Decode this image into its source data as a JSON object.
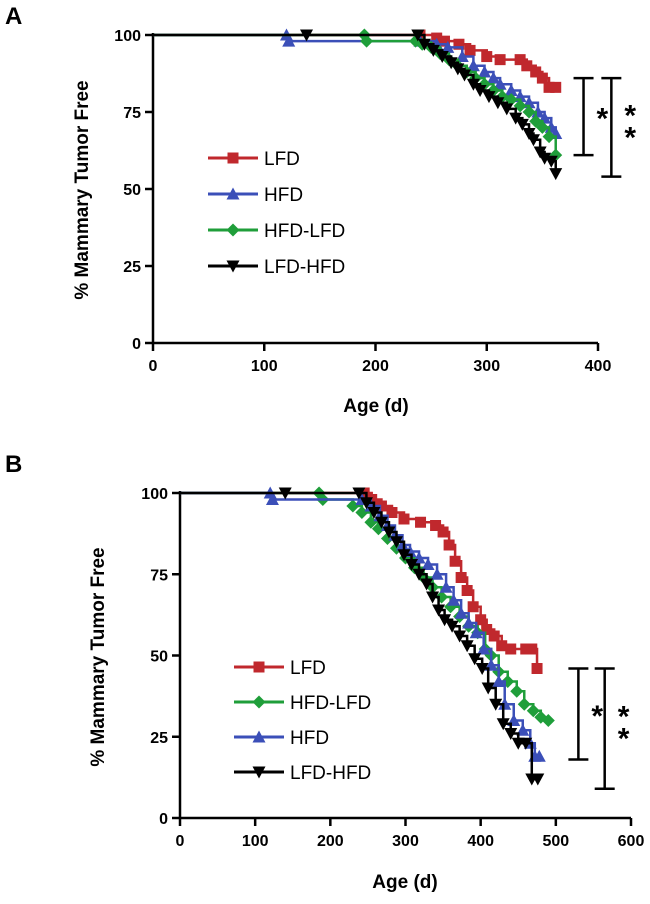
{
  "colors": {
    "LFD": "#c0282d",
    "HFD": "#3b4fb8",
    "HFD-LFD": "#1f9e3a",
    "LFD-HFD": "#000000"
  },
  "chart_data": [
    {
      "panel": "A",
      "type": "line",
      "title": "",
      "xlabel": "Age (d)",
      "ylabel": "% Mammary Tumor Free",
      "xlim": [
        0,
        400
      ],
      "ylim": [
        0,
        100
      ],
      "xticks": [
        0,
        100,
        200,
        300,
        400
      ],
      "yticks": [
        0,
        25,
        50,
        75,
        100
      ],
      "x_tick_labels": [
        "0",
        "100",
        "200",
        "300",
        "400"
      ],
      "y_tick_labels": [
        "0",
        "25",
        "50",
        "75",
        "100"
      ],
      "legend_order": [
        "LFD",
        "HFD",
        "HFD-LFD",
        "LFD-HFD"
      ],
      "series": [
        {
          "name": "LFD",
          "marker": "square",
          "points": [
            [
              0,
              100
            ],
            [
              240,
              100
            ],
            [
              255,
              99
            ],
            [
              262,
              98
            ],
            [
              275,
              97
            ],
            [
              285,
              95
            ],
            [
              300,
              93
            ],
            [
              312,
              92
            ],
            [
              330,
              92
            ],
            [
              336,
              90
            ],
            [
              344,
              88
            ],
            [
              350,
              86
            ],
            [
              356,
              83
            ],
            [
              362,
              83
            ]
          ]
        },
        {
          "name": "HFD",
          "marker": "triangle-up",
          "points": [
            [
              0,
              100
            ],
            [
              120,
              100
            ],
            [
              122,
              98
            ],
            [
              240,
              98
            ],
            [
              255,
              97
            ],
            [
              265,
              96
            ],
            [
              278,
              93
            ],
            [
              288,
              90
            ],
            [
              298,
              88
            ],
            [
              306,
              86
            ],
            [
              312,
              84
            ],
            [
              322,
              82
            ],
            [
              330,
              80
            ],
            [
              338,
              78
            ],
            [
              346,
              75
            ],
            [
              352,
              73
            ],
            [
              358,
              70
            ],
            [
              362,
              68
            ]
          ]
        },
        {
          "name": "HFD-LFD",
          "marker": "diamond",
          "points": [
            [
              0,
              100
            ],
            [
              190,
              100
            ],
            [
              192,
              98
            ],
            [
              236,
              98
            ],
            [
              242,
              97
            ],
            [
              250,
              96
            ],
            [
              258,
              94
            ],
            [
              266,
              92
            ],
            [
              274,
              90
            ],
            [
              282,
              88
            ],
            [
              290,
              86
            ],
            [
              298,
              84
            ],
            [
              306,
              82
            ],
            [
              314,
              80
            ],
            [
              322,
              79
            ],
            [
              330,
              77
            ],
            [
              338,
              75
            ],
            [
              344,
              72
            ],
            [
              350,
              70
            ],
            [
              356,
              67
            ],
            [
              362,
              61
            ]
          ]
        },
        {
          "name": "LFD-HFD",
          "marker": "triangle-down",
          "points": [
            [
              0,
              100
            ],
            [
              138,
              100
            ],
            [
              238,
              100
            ],
            [
              244,
              97
            ],
            [
              252,
              95
            ],
            [
              260,
              93
            ],
            [
              268,
              91
            ],
            [
              274,
              89
            ],
            [
              280,
              87
            ],
            [
              288,
              84
            ],
            [
              294,
              82
            ],
            [
              302,
              80
            ],
            [
              310,
              78
            ],
            [
              318,
              76
            ],
            [
              326,
              73
            ],
            [
              332,
              71
            ],
            [
              338,
              68
            ],
            [
              342,
              66
            ],
            [
              348,
              62
            ],
            [
              352,
              60
            ],
            [
              358,
              59
            ],
            [
              362,
              55
            ]
          ]
        }
      ],
      "annotations": [
        {
          "label": "*",
          "range": [
            61,
            86
          ],
          "x": 387
        },
        {
          "label": "**",
          "range": [
            54,
            86
          ],
          "x": 412
        }
      ]
    },
    {
      "panel": "B",
      "type": "line",
      "title": "",
      "xlabel": "Age (d)",
      "ylabel": "% Mammary Tumor Free",
      "xlim": [
        0,
        600
      ],
      "ylim": [
        0,
        100
      ],
      "xticks": [
        0,
        100,
        200,
        300,
        400,
        500,
        600
      ],
      "yticks": [
        0,
        25,
        50,
        75,
        100
      ],
      "x_tick_labels": [
        "0",
        "100",
        "200",
        "300",
        "400",
        "500",
        "600"
      ],
      "y_tick_labels": [
        "0",
        "25",
        "50",
        "75",
        "100"
      ],
      "legend_order": [
        "LFD",
        "HFD-LFD",
        "HFD",
        "LFD-HFD"
      ],
      "series": [
        {
          "name": "LFD",
          "marker": "square",
          "points": [
            [
              0,
              100
            ],
            [
              245,
              100
            ],
            [
              255,
              98
            ],
            [
              268,
              96
            ],
            [
              282,
              94
            ],
            [
              298,
              92
            ],
            [
              320,
              91
            ],
            [
              340,
              90
            ],
            [
              350,
              88
            ],
            [
              358,
              84
            ],
            [
              366,
              79
            ],
            [
              374,
              74
            ],
            [
              382,
              70
            ],
            [
              390,
              65
            ],
            [
              400,
              61
            ],
            [
              408,
              58
            ],
            [
              418,
              56
            ],
            [
              428,
              53
            ],
            [
              440,
              52
            ],
            [
              460,
              52
            ],
            [
              468,
              52
            ],
            [
              475,
              46
            ]
          ]
        },
        {
          "name": "HFD-LFD",
          "marker": "diamond",
          "points": [
            [
              0,
              100
            ],
            [
              185,
              100
            ],
            [
              190,
              98
            ],
            [
              230,
              96
            ],
            [
              242,
              94
            ],
            [
              254,
              91
            ],
            [
              264,
              89
            ],
            [
              276,
              86
            ],
            [
              288,
              83
            ],
            [
              300,
              80
            ],
            [
              312,
              77
            ],
            [
              324,
              74
            ],
            [
              336,
              71
            ],
            [
              348,
              68
            ],
            [
              360,
              65
            ],
            [
              372,
              62
            ],
            [
              384,
              59
            ],
            [
              396,
              57
            ],
            [
              406,
              52
            ],
            [
              414,
              50
            ],
            [
              424,
              45
            ],
            [
              436,
              42
            ],
            [
              448,
              39
            ],
            [
              458,
              35
            ],
            [
              470,
              33
            ],
            [
              480,
              31
            ],
            [
              490,
              30
            ]
          ]
        },
        {
          "name": "HFD",
          "marker": "triangle-up",
          "points": [
            [
              0,
              100
            ],
            [
              120,
              100
            ],
            [
              123,
              98
            ],
            [
              242,
              98
            ],
            [
              254,
              96
            ],
            [
              266,
              93
            ],
            [
              276,
              90
            ],
            [
              286,
              87
            ],
            [
              296,
              84
            ],
            [
              306,
              82
            ],
            [
              318,
              80
            ],
            [
              330,
              78
            ],
            [
              342,
              75
            ],
            [
              354,
              71
            ],
            [
              364,
              67
            ],
            [
              374,
              63
            ],
            [
              384,
              60
            ],
            [
              394,
              57
            ],
            [
              404,
              52
            ],
            [
              414,
              47
            ],
            [
              424,
              42
            ],
            [
              432,
              35
            ],
            [
              444,
              30
            ],
            [
              456,
              27
            ],
            [
              466,
              23
            ],
            [
              472,
              19
            ],
            [
              478,
              19
            ]
          ]
        },
        {
          "name": "LFD-HFD",
          "marker": "triangle-down",
          "points": [
            [
              0,
              100
            ],
            [
              140,
              100
            ],
            [
              238,
              100
            ],
            [
              248,
              97
            ],
            [
              258,
              94
            ],
            [
              268,
              91
            ],
            [
              278,
              88
            ],
            [
              288,
              85
            ],
            [
              298,
              81
            ],
            [
              308,
              78
            ],
            [
              318,
              75
            ],
            [
              328,
              72
            ],
            [
              336,
              68
            ],
            [
              344,
              64
            ],
            [
              352,
              61
            ],
            [
              362,
              59
            ],
            [
              372,
              56
            ],
            [
              382,
              53
            ],
            [
              392,
              49
            ],
            [
              402,
              46
            ],
            [
              410,
              40
            ],
            [
              420,
              35
            ],
            [
              430,
              29
            ],
            [
              440,
              26
            ],
            [
              450,
              23
            ],
            [
              460,
              23
            ],
            [
              468,
              12
            ],
            [
              476,
              12
            ]
          ]
        }
      ],
      "annotations": [
        {
          "label": "*",
          "range": [
            18,
            46
          ],
          "x": 530
        },
        {
          "label": "**",
          "range": [
            9,
            46
          ],
          "x": 565
        }
      ]
    }
  ]
}
